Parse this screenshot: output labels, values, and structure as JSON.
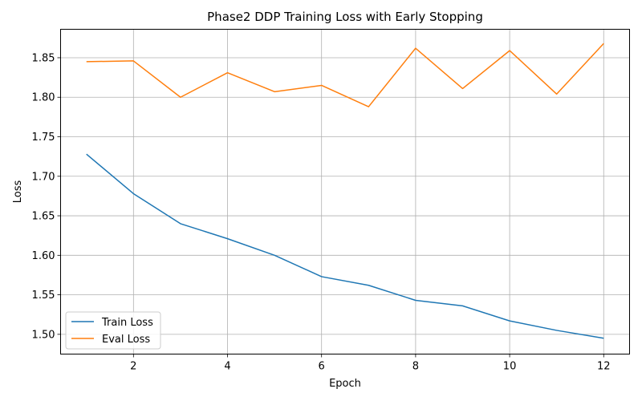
{
  "chart_data": {
    "type": "line",
    "title": "Phase2 DDP Training Loss with Early Stopping",
    "xlabel": "Epoch",
    "ylabel": "Loss",
    "x": [
      1,
      2,
      3,
      4,
      5,
      6,
      7,
      8,
      9,
      10,
      11,
      12
    ],
    "series": [
      {
        "name": "Train Loss",
        "color": "#1f77b4",
        "values": [
          1.728,
          1.678,
          1.64,
          1.621,
          1.6,
          1.573,
          1.562,
          1.543,
          1.536,
          1.517,
          1.505,
          1.495
        ]
      },
      {
        "name": "Eval Loss",
        "color": "#ff7f0e",
        "values": [
          1.845,
          1.846,
          1.8,
          1.831,
          1.807,
          1.815,
          1.788,
          1.862,
          1.811,
          1.859,
          1.804,
          1.868
        ]
      }
    ],
    "xlim": [
      0.45,
      12.55
    ],
    "ylim": [
      1.475,
      1.886
    ],
    "xticks": [
      2,
      4,
      6,
      8,
      10,
      12
    ],
    "yticks": [
      "1.50",
      "1.55",
      "1.60",
      "1.65",
      "1.70",
      "1.75",
      "1.80",
      "1.85"
    ],
    "grid": true,
    "legend_position": "lower-left"
  }
}
